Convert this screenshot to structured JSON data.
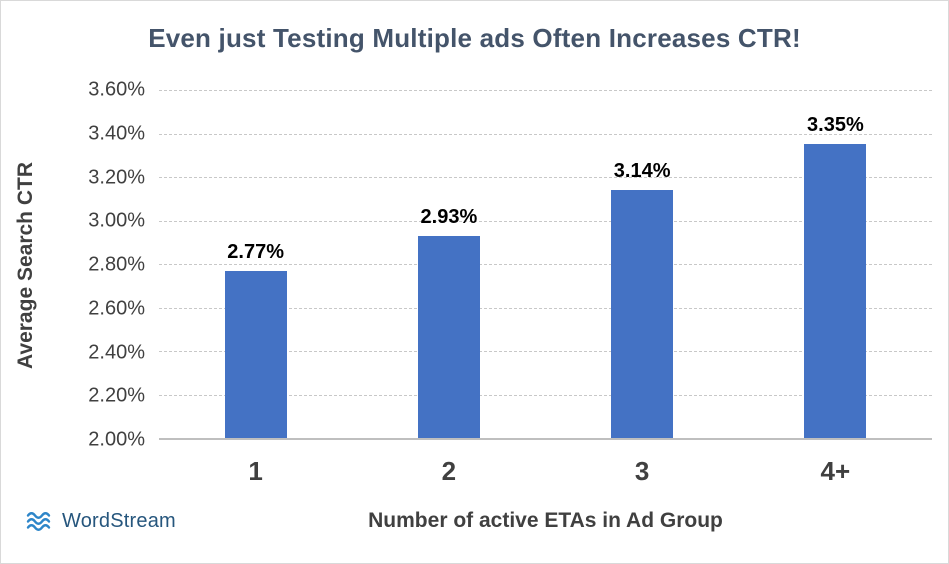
{
  "chart_data": {
    "type": "bar",
    "title": "Even just Testing Multiple ads Often Increases CTR!",
    "categories": [
      "1",
      "2",
      "3",
      "4+"
    ],
    "values": [
      2.77,
      2.93,
      3.14,
      3.35
    ],
    "value_labels": [
      "2.77%",
      "2.93%",
      "3.14%",
      "3.35%"
    ],
    "xlabel": "Number of active ETAs in Ad Group",
    "ylabel": "Average Search CTR",
    "ylim": [
      2.0,
      3.6
    ],
    "ytick_step": 0.2,
    "ytick_labels": [
      "2.00%",
      "2.20%",
      "2.40%",
      "2.60%",
      "2.80%",
      "3.00%",
      "3.20%",
      "3.40%",
      "3.60%"
    ],
    "grid": "dashed horizontal gridlines",
    "legend": "none",
    "bar_color": "#4472C4"
  },
  "branding": {
    "logo_text": "WordStream",
    "logo_icon": "waves-icon",
    "wave_color": "#2E86C9",
    "logo_text_color": "#26567D"
  },
  "colors": {
    "title": "#44546A",
    "axis_text": "#404040",
    "data_label": "#000000",
    "gridline": "#C8C8C8",
    "axis_line": "#BFBFBF",
    "background": "#FFFFFF",
    "border": "#D9D9D9"
  }
}
